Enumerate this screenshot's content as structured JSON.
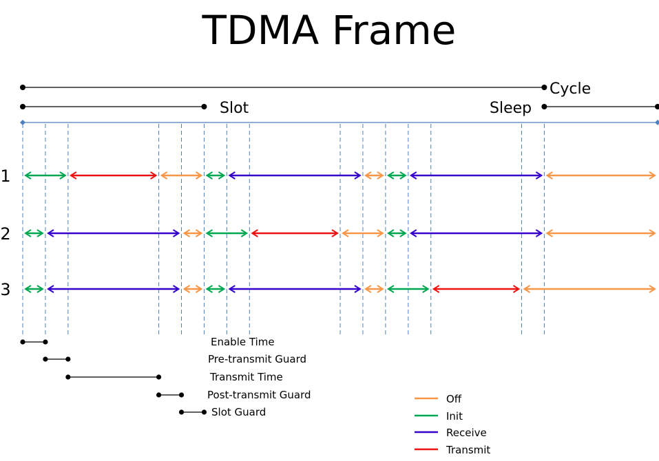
{
  "title": "TDMA Frame",
  "brackets": {
    "cycle": "Cycle",
    "slot": "Slot",
    "sleep": "Sleep"
  },
  "colors": {
    "Off": "#f79646",
    "Init": "#00a651",
    "Receive": "#3300cc",
    "Transmit": "#ee1111",
    "axis": "#4f81bd",
    "grid": "#4f81bd"
  },
  "rows": [
    {
      "label": "1",
      "segments": [
        [
          "Init",
          0,
          2
        ],
        [
          "Transmit",
          2,
          6
        ],
        [
          "Off",
          6,
          8
        ],
        [
          "Init",
          8,
          9
        ],
        [
          "Receive",
          9,
          15
        ],
        [
          "Off",
          15,
          16
        ],
        [
          "Init",
          16,
          17
        ],
        [
          "Receive",
          17,
          23
        ],
        [
          "Off",
          23,
          28
        ]
      ]
    },
    {
      "label": "2",
      "segments": [
        [
          "Init",
          0,
          1
        ],
        [
          "Receive",
          1,
          7
        ],
        [
          "Off",
          7,
          8
        ],
        [
          "Init",
          8,
          10
        ],
        [
          "Transmit",
          10,
          14
        ],
        [
          "Off",
          14,
          16
        ],
        [
          "Init",
          16,
          17
        ],
        [
          "Receive",
          17,
          23
        ],
        [
          "Off",
          23,
          28
        ]
      ]
    },
    {
      "label": "3",
      "segments": [
        [
          "Init",
          0,
          1
        ],
        [
          "Receive",
          1,
          7
        ],
        [
          "Off",
          7,
          8
        ],
        [
          "Init",
          8,
          9
        ],
        [
          "Receive",
          9,
          15
        ],
        [
          "Off",
          15,
          16
        ],
        [
          "Init",
          16,
          18
        ],
        [
          "Transmit",
          18,
          22
        ],
        [
          "Off",
          22,
          28
        ]
      ]
    }
  ],
  "timing_legend": [
    {
      "label": "Enable Time",
      "from": 0,
      "to": 1
    },
    {
      "label": "Pre-transmit Guard",
      "from": 1,
      "to": 2
    },
    {
      "label": "Transmit Time",
      "from": 2,
      "to": 6
    },
    {
      "label": "Post-transmit Guard",
      "from": 6,
      "to": 7
    },
    {
      "label": "Slot Guard",
      "from": 7,
      "to": 8
    }
  ],
  "color_legend": [
    "Off",
    "Init",
    "Receive",
    "Transmit"
  ]
}
